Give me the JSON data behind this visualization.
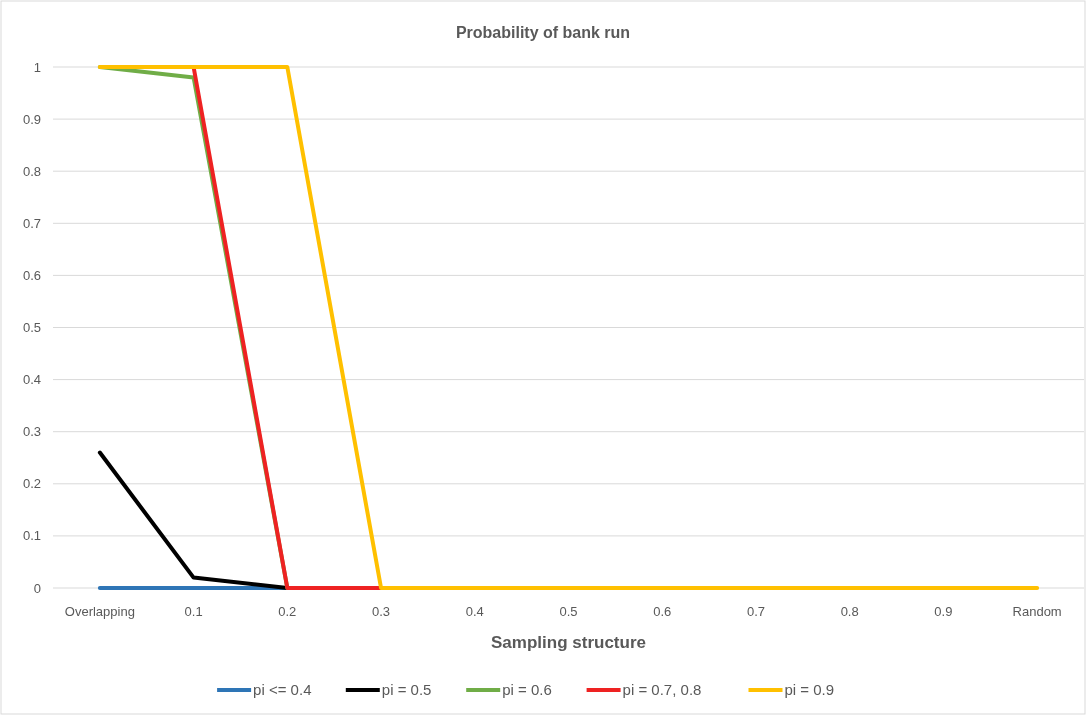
{
  "chart_data": {
    "type": "line",
    "title": "Probability of bank run",
    "xlabel": "Sampling structure",
    "categories": [
      "Overlapping",
      "0.1",
      "0.2",
      "0.3",
      "0.4",
      "0.5",
      "0.6",
      "0.7",
      "0.8",
      "0.9",
      "Random"
    ],
    "ylim": [
      0,
      1
    ],
    "yticks": [
      0,
      0.1,
      0.2,
      0.3,
      0.4,
      0.5,
      0.6,
      0.7,
      0.8,
      0.9,
      1
    ],
    "grid": "y",
    "legend": "bottom",
    "marker": "none",
    "line_style": "solid",
    "series": [
      {
        "name": "pi <= 0.4",
        "color": "#2e75b6",
        "values": [
          0,
          0,
          0,
          null,
          null,
          null,
          null,
          null,
          null,
          null,
          null
        ]
      },
      {
        "name": "pi = 0.5",
        "color": "#000000",
        "values": [
          0.26,
          0.02,
          0,
          null,
          null,
          null,
          null,
          null,
          null,
          null,
          null
        ]
      },
      {
        "name": "pi = 0.6",
        "color": "#70ad47",
        "values": [
          1,
          0.98,
          0,
          null,
          null,
          null,
          null,
          null,
          null,
          null,
          null
        ]
      },
      {
        "name": "pi = 0.7, 0.8",
        "color": "#ee2222",
        "values": [
          null,
          1,
          0,
          0,
          null,
          null,
          null,
          null,
          null,
          null,
          null
        ]
      },
      {
        "name": "pi = 0.9",
        "color": "#ffc000",
        "values": [
          1,
          1,
          1,
          0,
          0,
          0,
          0,
          0,
          0,
          0,
          0
        ]
      }
    ]
  }
}
